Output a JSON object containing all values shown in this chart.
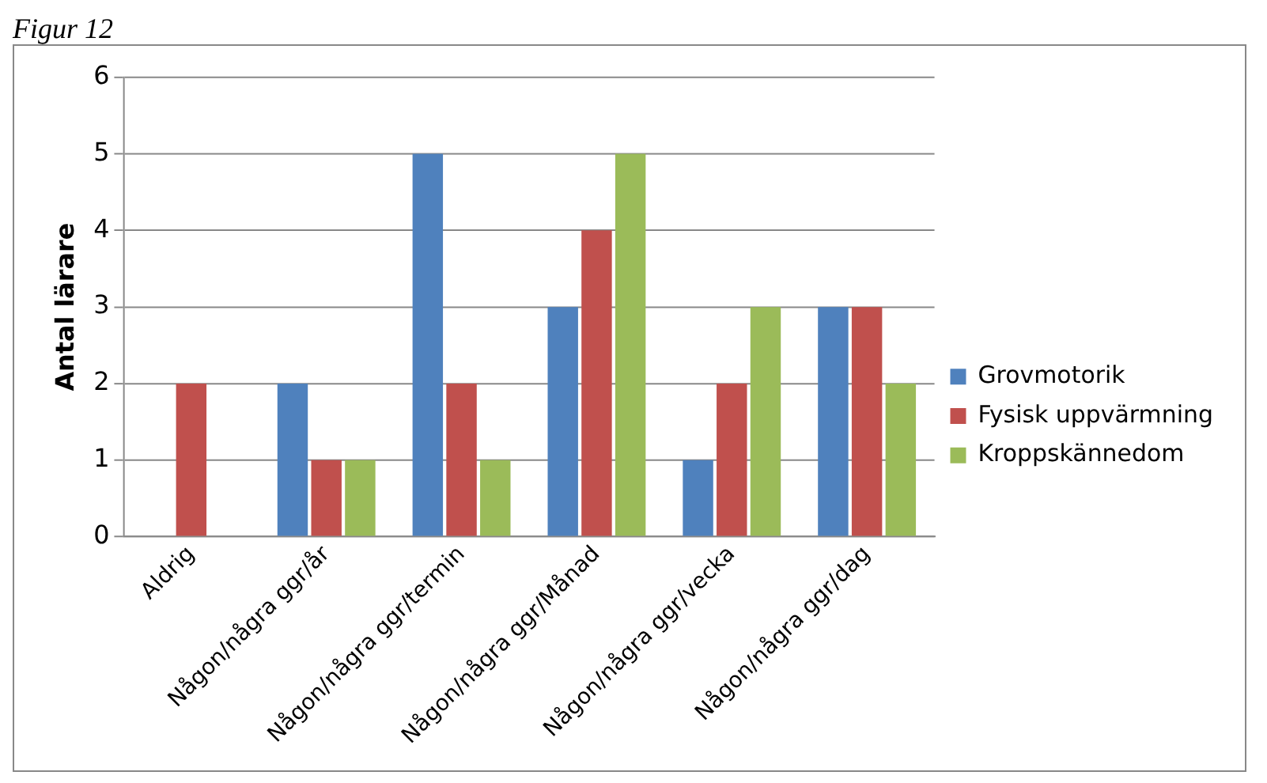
{
  "chart_data": {
    "type": "bar",
    "ylabel": "Antal lärare",
    "annotations": [
      "Figur 12"
    ],
    "categories": [
      "Aldrig",
      "Någon/några ggr/år",
      "Någon/några ggr/termin",
      "Någon/några ggr/Månad",
      "Någon/några ggr/vecka",
      "Någon/några ggr/dag"
    ],
    "series": [
      {
        "name": "Grovmotorik",
        "color": "#4f81bd",
        "values": [
          0,
          2,
          5,
          3,
          1,
          3
        ]
      },
      {
        "name": "Fysisk uppvärmning",
        "color": "#c0504d",
        "values": [
          2,
          1,
          2,
          4,
          2,
          3
        ]
      },
      {
        "name": "Kroppskännedom",
        "color": "#9bbb59",
        "values": [
          0,
          1,
          1,
          5,
          3,
          2
        ]
      }
    ],
    "ylim": [
      0,
      6
    ],
    "yticks": [
      0,
      1,
      2,
      3,
      4,
      5,
      6
    ],
    "grid": "y",
    "legend": "right"
  }
}
